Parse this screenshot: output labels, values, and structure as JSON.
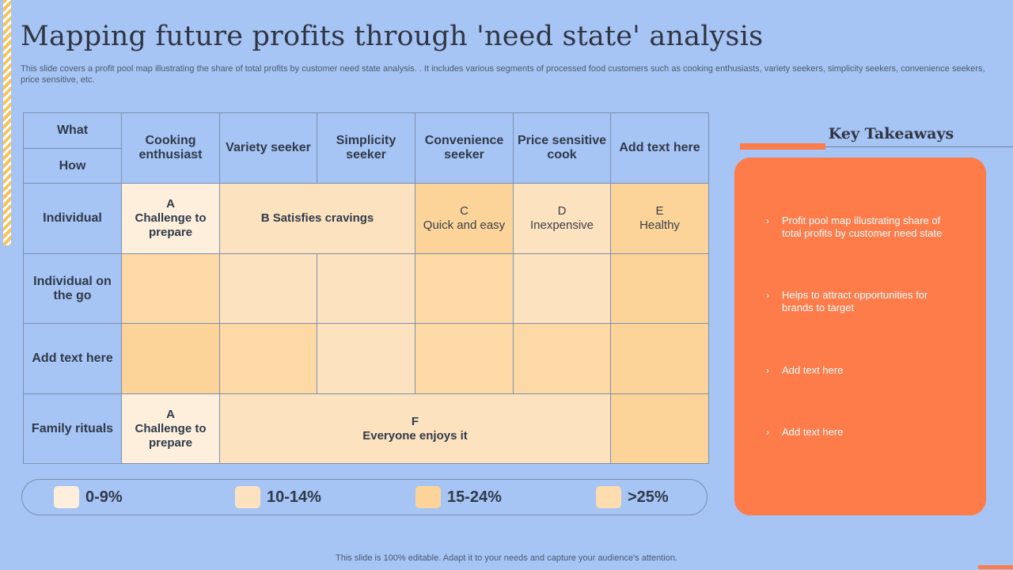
{
  "title": "Mapping future profits through 'need state' analysis",
  "subtitle": "This slide covers a profit pool map illustrating the share of total profits by customer need state analysis. . It includes various segments of processed food customers such as cooking enthusiasts, variety seekers, simplicity seekers, convenience seekers, price sensitive, etc.",
  "table": {
    "corner_top": "What",
    "corner_bottom": "How",
    "columns": [
      "Cooking enthusiast",
      "Variety seeker",
      "Simplicity seeker",
      "Convenience seeker",
      "Price sensitive cook",
      "Add text here"
    ],
    "rows": [
      "Individual",
      "Individual on the go",
      "Add text here",
      "Family rituals"
    ],
    "cells": {
      "r1_a_letter": "A",
      "r1_a_text": "Challenge to prepare",
      "r1_b": "B Satisfies cravings",
      "r1_c_letter": "C",
      "r1_c_text": "Quick and easy",
      "r1_d_letter": "D",
      "r1_d_text": "Inexpensive",
      "r1_e_letter": "E",
      "r1_e_text": "Healthy",
      "r4_a_letter": "A",
      "r4_a_text": "Challenge to prepare",
      "r4_f_letter": "F",
      "r4_f_text": "Everyone enjoys it"
    }
  },
  "legend": [
    {
      "label": "0-9%",
      "color": "#fdefdc"
    },
    {
      "label": "10-14%",
      "color": "#fde2bf"
    },
    {
      "label": "15-24%",
      "color": "#fcd49a"
    },
    {
      "label": ">25%",
      "color": "#fddcb0"
    }
  ],
  "takeaways": {
    "title": "Key Takeaways",
    "items": [
      "Profit pool map illustrating share of total profits by customer need state",
      "Helps to attract opportunities for brands to target",
      "Add text here",
      "Add text here"
    ]
  },
  "footer": "This slide is 100% editable.  Adapt it to your needs and capture your audience's attention.",
  "colors": {
    "background": "#a6c4f4",
    "accent": "#fe7b4a"
  }
}
